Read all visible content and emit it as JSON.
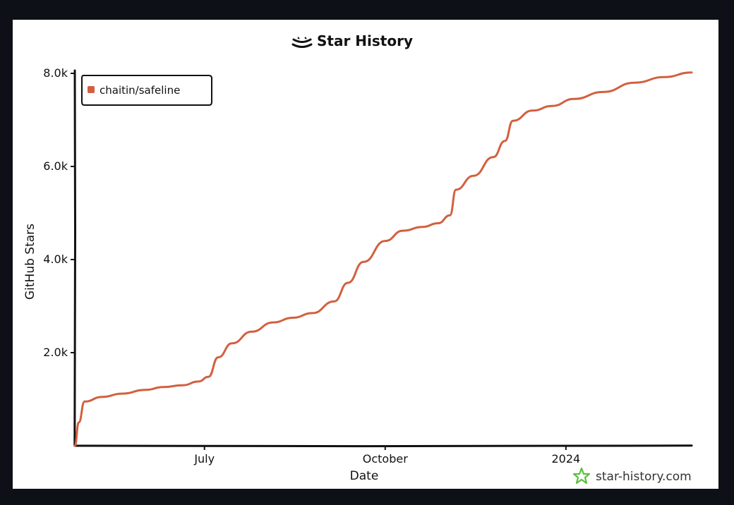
{
  "chart_data": {
    "type": "line",
    "title": "Star History",
    "xlabel": "Date",
    "ylabel": "GitHub Stars",
    "x_ticks": [
      "July",
      "October",
      "2024"
    ],
    "y_ticks": [
      "2.0k",
      "4.0k",
      "6.0k",
      "8.0k"
    ],
    "y_tick_values": [
      2000,
      4000,
      6000,
      8000
    ],
    "ylim": [
      0,
      8000
    ],
    "grid": false,
    "legend_position": "top-left",
    "series": [
      {
        "name": "chaitin/safeline",
        "color": "#d2603f",
        "points": [
          [
            "2023-04-26",
            0
          ],
          [
            "2023-04-28",
            500
          ],
          [
            "2023-05-01",
            950
          ],
          [
            "2023-05-10",
            1050
          ],
          [
            "2023-05-20",
            1120
          ],
          [
            "2023-06-01",
            1200
          ],
          [
            "2023-06-10",
            1260
          ],
          [
            "2023-06-20",
            1300
          ],
          [
            "2023-06-28",
            1380
          ],
          [
            "2023-07-03",
            1480
          ],
          [
            "2023-07-08",
            1900
          ],
          [
            "2023-07-15",
            2200
          ],
          [
            "2023-07-25",
            2450
          ],
          [
            "2023-08-05",
            2650
          ],
          [
            "2023-08-15",
            2750
          ],
          [
            "2023-08-25",
            2850
          ],
          [
            "2023-09-05",
            3100
          ],
          [
            "2023-09-12",
            3500
          ],
          [
            "2023-09-20",
            3950
          ],
          [
            "2023-10-01",
            4400
          ],
          [
            "2023-10-10",
            4620
          ],
          [
            "2023-10-20",
            4700
          ],
          [
            "2023-10-28",
            4780
          ],
          [
            "2023-11-03",
            4950
          ],
          [
            "2023-11-06",
            5500
          ],
          [
            "2023-11-15",
            5800
          ],
          [
            "2023-11-25",
            6200
          ],
          [
            "2023-12-01",
            6550
          ],
          [
            "2023-12-05",
            6980
          ],
          [
            "2023-12-15",
            7200
          ],
          [
            "2023-12-25",
            7300
          ],
          [
            "2024-01-05",
            7450
          ],
          [
            "2024-01-20",
            7600
          ],
          [
            "2024-02-05",
            7800
          ],
          [
            "2024-02-20",
            7920
          ],
          [
            "2024-03-05",
            8020
          ]
        ]
      }
    ],
    "source": "star-history.com"
  },
  "colors": {
    "line": "#d2603f",
    "axis": "#111111",
    "brand_icon": "#5bbf3f"
  }
}
